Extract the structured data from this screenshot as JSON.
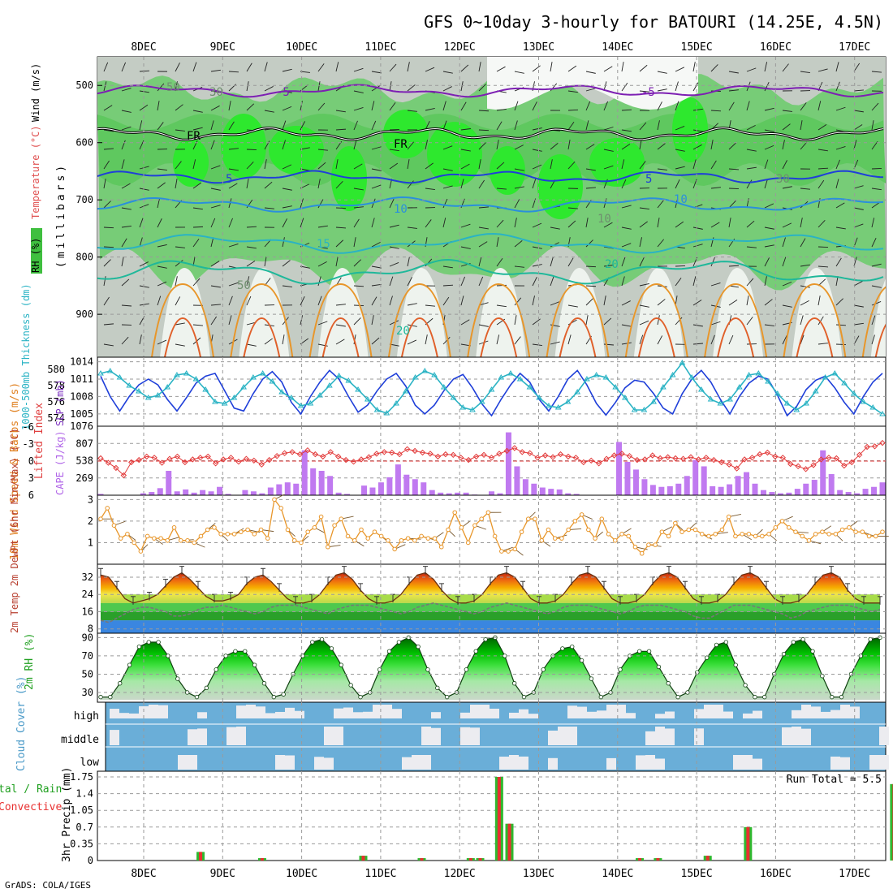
{
  "title": "GFS 0~10day 3-hourly for BATOURI (14.25E, 4.5N)",
  "footer": "GrADS: COLA/IGES",
  "colors": {
    "purple": "#7d1fb3",
    "blue_line": "#1f3fd9",
    "cyan_line": "#2ab3c4",
    "orange": "#e8962a",
    "cape_bar": "#c07af0",
    "lifted": "#e23a3a",
    "rh_green": "#3fc93f",
    "cloud_blue": "#6aaed8",
    "rain_red": "#e83030",
    "rain_green": "#2fb82f",
    "grid": "#9a9a9a"
  },
  "chart_data": [
    {
      "id": "upper-air",
      "type": "heatmap",
      "label_rh": "RH (%)",
      "label_temp": "Temperature (°C)",
      "label_wind": "Wind (m/s)",
      "ylabel": "(millibars)",
      "ylim": [
        975,
        450
      ],
      "yticks": [
        500,
        600,
        700,
        800,
        900
      ],
      "isotherm_labels": [
        "-5",
        "-5",
        "FR",
        "FR",
        "5",
        "5",
        "10",
        "10",
        "15",
        "20",
        "20",
        "50",
        "30",
        "50",
        "10",
        "30"
      ]
    },
    {
      "id": "slp-thickness",
      "type": "line",
      "ylabel_left": "1000-500mb Thickness (dm)",
      "ylabel_right": "SLP (mb)",
      "left_ticks": [
        574,
        576,
        578,
        580
      ],
      "right_ticks": [
        1005,
        1008,
        1011,
        1014
      ],
      "series": [
        {
          "name": "SLP (mb)",
          "values": [
            1011.5,
            1008,
            1005.5,
            1008,
            1010,
            1011,
            1010,
            1007.5,
            1005.5,
            1007.8,
            1010.3,
            1011.5,
            1012,
            1009,
            1006,
            1005.5,
            1008.5,
            1011,
            1012.3,
            1010.5,
            1007,
            1005,
            1008,
            1010.5,
            1012.5,
            1011,
            1008,
            1005.3,
            1006.5,
            1009,
            1011,
            1012,
            1009.8,
            1006.5,
            1005,
            1006.5,
            1009,
            1011,
            1011.8,
            1009.5,
            1006.7,
            1004.7,
            1007.5,
            1010,
            1012,
            1010.5,
            1007.5,
            1005.5,
            1008,
            1011,
            1012.5,
            1010,
            1006.8,
            1004.8,
            1007,
            1009.5,
            1010.8,
            1010.5,
            1008.5,
            1006,
            1005,
            1008.5,
            1011,
            1012.5,
            1010.5,
            1007.5,
            1005,
            1008,
            1010.3,
            1011.5,
            1011,
            1008.2,
            1004.7,
            1006.3,
            1009.2,
            1010.8,
            1011.5,
            1009.5,
            1007,
            1005,
            1008,
            1010.5,
            1012
          ]
        },
        {
          "name": "Thickness (dm)",
          "values": [
            579.5,
            579.8,
            579.0,
            578.0,
            577.3,
            576.5,
            576.8,
            577.8,
            579.3,
            579.5,
            578.8,
            577.5,
            576.0,
            575.8,
            576.5,
            577.8,
            579.0,
            579.5,
            578.5,
            577.2,
            576.5,
            575.5,
            575.8,
            576.8,
            578.0,
            579.2,
            578.6,
            577.5,
            576.3,
            575.0,
            574.6,
            575.8,
            577.3,
            579.0,
            579.8,
            579.3,
            577.8,
            576.5,
            575.3,
            575.0,
            576.0,
            577.5,
            579.0,
            579.5,
            578.8,
            577.8,
            576.5,
            575.5,
            575.3,
            576.0,
            577.2,
            578.8,
            579.3,
            579.0,
            577.8,
            576.5,
            575.0,
            575.0,
            576.0,
            577.8,
            579.3,
            580.8,
            579.0,
            577.5,
            576.3,
            575.8,
            576.3,
            577.8,
            579.3,
            579.5,
            578.5,
            577.0,
            575.8,
            575.0,
            575.8,
            577.3,
            579.0,
            579.5,
            578.3,
            577.0,
            576.0,
            575.3,
            574.5
          ]
        }
      ]
    },
    {
      "id": "cape-li",
      "type": "bar",
      "ylabel_left": "Lifted Index",
      "ylabel_right": "CAPE (J/kg)",
      "left_ticks": [
        "6",
        "3",
        "0",
        "-3",
        "-6"
      ],
      "right_ticks": [
        269,
        538,
        807,
        1076
      ],
      "series": [
        {
          "name": "CAPE (J/kg)",
          "values": [
            20,
            0,
            0,
            0,
            0,
            30,
            50,
            110,
            380,
            60,
            90,
            40,
            80,
            60,
            130,
            20,
            0,
            80,
            60,
            30,
            120,
            170,
            200,
            180,
            700,
            420,
            380,
            300,
            40,
            20,
            0,
            150,
            120,
            200,
            280,
            480,
            320,
            250,
            200,
            80,
            40,
            30,
            40,
            40,
            10,
            0,
            60,
            30,
            980,
            450,
            250,
            180,
            120,
            100,
            90,
            30,
            20,
            0,
            0,
            0,
            0,
            830,
            520,
            400,
            250,
            160,
            130,
            140,
            180,
            300,
            550,
            450,
            140,
            130,
            170,
            300,
            360,
            180,
            80,
            50,
            30,
            40,
            100,
            180,
            240,
            700,
            330,
            80,
            50,
            30,
            100,
            130,
            200
          ]
        },
        {
          "name": "Lifted Index",
          "values": [
            -0.5,
            0.3,
            1.2,
            2.5,
            0.2,
            -0.2,
            -0.8,
            -0.6,
            0.3,
            -0.4,
            -0.8,
            0.2,
            -0.3,
            -0.6,
            -0.8,
            0.4,
            -0.3,
            -0.6,
            0.1,
            -0.4,
            -0.1,
            0.6,
            -0.2,
            -0.9,
            -1.4,
            -1.6,
            -1.2,
            -1.9,
            -1.2,
            -0.8,
            -1.6,
            -0.8,
            -0.2,
            0.1,
            -0.3,
            -0.7,
            -1.3,
            -1.6,
            -1.5,
            -1.2,
            -2.1,
            -1.8,
            -1.5,
            -1.3,
            -0.8,
            -1.2,
            -1.1,
            -0.6,
            -0.2,
            -0.8,
            -1.1,
            -0.6,
            -1.3,
            -1.8,
            -2.3,
            -1.6,
            -1.4,
            -0.6,
            -1.0,
            -0.7,
            -1.2,
            -0.8,
            -0.6,
            0.2,
            -0.1,
            0.4,
            -0.4,
            -1.0,
            -1.3,
            -0.9,
            -0.2,
            -0.3,
            -1.0,
            -0.5,
            -0.7,
            -0.5,
            -0.4,
            -0.7,
            -0.3,
            -0.6,
            -0.2,
            0.2,
            0.6,
            1.3,
            -0.3,
            -0.6,
            -1.2,
            -1.5,
            -0.8,
            -0.6,
            0.5,
            0.9,
            1.4,
            0.7,
            -0.3,
            -0.6,
            -0.5,
            0.8,
            0.2,
            -1.1,
            -2.5,
            -2.6,
            -3.2
          ]
        }
      ]
    },
    {
      "id": "wind10m",
      "type": "line",
      "ylabel": "10m Wind Speed & Barbs (m/s)",
      "ylim": [
        0,
        3.2
      ],
      "yticks": [
        1,
        2,
        3
      ],
      "series": [
        {
          "name": "10m Wind Speed (m/s)",
          "values": [
            2.1,
            2.6,
            1.8,
            1.2,
            1.4,
            1.0,
            0.6,
            1.3,
            1.2,
            1.2,
            1.1,
            1.7,
            1.1,
            1.1,
            1.0,
            1.3,
            1.6,
            1.7,
            1.4,
            1.4,
            1.4,
            1.5,
            1.6,
            1.4,
            1.6,
            1.2,
            3.0,
            2.6,
            1.6,
            1.1,
            1.0,
            1.5,
            1.7,
            2.2,
            0.8,
            1.8,
            2.1,
            1.3,
            1.1,
            1.6,
            1.2,
            1.5,
            1.3,
            1.1,
            0.7,
            1.1,
            1.2,
            1.1,
            1.3,
            1.2,
            1.2,
            0.8,
            1.6,
            2.4,
            1.7,
            1.0,
            1.8,
            2.1,
            2.4,
            1.3,
            0.6,
            0.6,
            0.7,
            1.5,
            2.1,
            2.1,
            1.1,
            1.6,
            1.2,
            1.2,
            1.6,
            2.0,
            2.3,
            1.6,
            1.2,
            2.1,
            1.4,
            1.1,
            1.4,
            1.3,
            0.8,
            0.5,
            0.9,
            0.9,
            1.5,
            1.3,
            1.9,
            1.5,
            1.6,
            1.6,
            1.4,
            1.3,
            1.4,
            1.6,
            2.2,
            1.3,
            1.4,
            1.4,
            1.3,
            1.3,
            1.4,
            1.7,
            2.0,
            1.7,
            1.5,
            1.3,
            1.1,
            1.4,
            1.5,
            1.4,
            1.4,
            1.6,
            1.7,
            1.5,
            1.5,
            1.3,
            1.3,
            1.5
          ]
        }
      ]
    },
    {
      "id": "temp2m",
      "type": "area",
      "ylabel": "2m Temp 2m DewPt (6hr Min/Max) (°C)",
      "ylim": [
        8,
        38
      ],
      "yticks": [
        8,
        16,
        24,
        32
      ],
      "series": [
        {
          "name": "2m Temp (°C)",
          "values": [
            33,
            32,
            27,
            22,
            20,
            21,
            22,
            24,
            28,
            32,
            34,
            31,
            27,
            23,
            21,
            21,
            22,
            24,
            29,
            32,
            33,
            30,
            26,
            22,
            20,
            20,
            21,
            24,
            29,
            33,
            34,
            31,
            26,
            22,
            20,
            20,
            21,
            24,
            29,
            33,
            34,
            31,
            26,
            22,
            20,
            20,
            21,
            24,
            29,
            33,
            34,
            32,
            27,
            22,
            20,
            20,
            21,
            24,
            29,
            33,
            34,
            32,
            27,
            22,
            20,
            20,
            21,
            24,
            29,
            33,
            34,
            32,
            27,
            22,
            20,
            20,
            21,
            24,
            29,
            33,
            34,
            32,
            27,
            22,
            20,
            20,
            21,
            24,
            29,
            33,
            34,
            32,
            26,
            22,
            20,
            20,
            20
          ]
        },
        {
          "name": "2m DewPt (°C)",
          "values": [
            12,
            11,
            13,
            15,
            17,
            18,
            18,
            17,
            16,
            14,
            14,
            15,
            17,
            18,
            18,
            19,
            18,
            17,
            16,
            15,
            16,
            18,
            19,
            19,
            19,
            18,
            17,
            16,
            15,
            17,
            18,
            19,
            19,
            19,
            18,
            17,
            16,
            15,
            16,
            18,
            19,
            20,
            19,
            18,
            17,
            16,
            15,
            16,
            18,
            19,
            20,
            19,
            18,
            17,
            16,
            15,
            16,
            18,
            19,
            19,
            19,
            18,
            17,
            16,
            15,
            16,
            18,
            19,
            19,
            19,
            18,
            17,
            16,
            14,
            13,
            13,
            15,
            17,
            19,
            19,
            19,
            18,
            17,
            16,
            15,
            13,
            14,
            16,
            17,
            18,
            19,
            19,
            19,
            18,
            17,
            16,
            17
          ]
        }
      ]
    },
    {
      "id": "rh2m",
      "type": "area",
      "ylabel": "2m RH (%)",
      "ylim": [
        22,
        93
      ],
      "yticks": [
        30,
        50,
        70,
        90
      ],
      "series": [
        {
          "name": "2m RH (%)",
          "values": [
            25,
            25,
            40,
            60,
            80,
            85,
            85,
            70,
            45,
            30,
            25,
            35,
            55,
            70,
            75,
            75,
            60,
            40,
            25,
            28,
            50,
            70,
            85,
            88,
            78,
            60,
            38,
            25,
            30,
            55,
            75,
            85,
            90,
            80,
            55,
            35,
            25,
            30,
            55,
            75,
            88,
            90,
            70,
            40,
            25,
            30,
            55,
            70,
            78,
            80,
            65,
            45,
            25,
            30,
            55,
            70,
            75,
            75,
            58,
            40,
            25,
            30,
            52,
            68,
            82,
            85,
            60,
            38,
            25,
            25,
            50,
            72,
            85,
            88,
            75,
            48,
            25,
            25,
            50,
            70,
            88,
            90
          ]
        }
      ]
    },
    {
      "id": "cloud",
      "type": "heatmap",
      "ylabel": "Cloud Cover (%)",
      "levels": [
        "high",
        "middle",
        "low"
      ]
    },
    {
      "id": "precip",
      "type": "bar",
      "ylabel_left": "Total / Rain Convective",
      "ylabel": "3hr Precip (mm)",
      "ylim": [
        0,
        1.75
      ],
      "yticks": [
        0,
        0.35,
        0.7,
        1.05,
        1.4,
        1.75
      ],
      "annotation": "Run Total = 5.5",
      "events": [
        {
          "day": 0.72,
          "value": 0.18
        },
        {
          "day": 1.5,
          "value": 0.05
        },
        {
          "day": 2.78,
          "value": 0.1
        },
        {
          "day": 3.52,
          "value": 0.05
        },
        {
          "day": 4.14,
          "value": 0.05
        },
        {
          "day": 4.26,
          "value": 0.05
        },
        {
          "day": 4.5,
          "value": 1.75
        },
        {
          "day": 4.63,
          "value": 0.77
        },
        {
          "day": 6.28,
          "value": 0.05
        },
        {
          "day": 6.51,
          "value": 0.05
        },
        {
          "day": 7.14,
          "value": 0.1
        },
        {
          "day": 7.65,
          "value": 0.7
        },
        {
          "day": 9.5,
          "value": 1.6
        }
      ]
    }
  ],
  "x_axis": {
    "day_labels": [
      "8DEC",
      "9DEC",
      "10DEC",
      "11DEC",
      "12DEC",
      "13DEC",
      "14DEC",
      "15DEC",
      "16DEC",
      "17DEC"
    ]
  }
}
